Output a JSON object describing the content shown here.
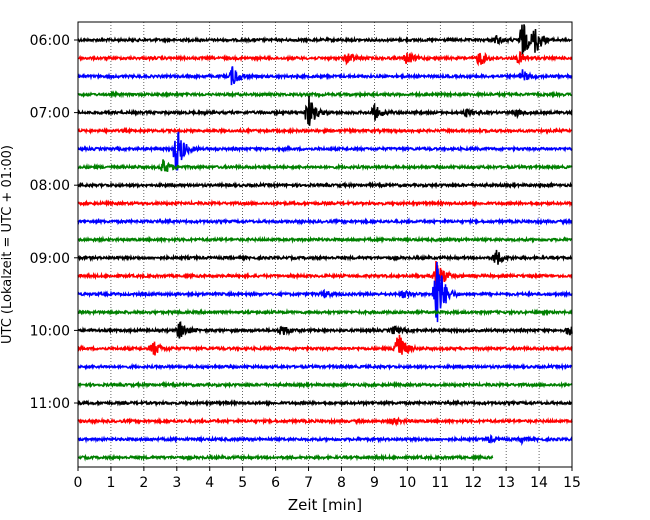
{
  "chart_data": {
    "type": "line",
    "subtype": "helicorder",
    "xlabel": "Zeit  [min]",
    "ylabel": "UTC (Lokalzeit = UTC + 01:00)",
    "xlim": [
      0,
      15
    ],
    "x_ticks": [
      0,
      1,
      2,
      3,
      4,
      5,
      6,
      7,
      8,
      9,
      10,
      11,
      12,
      13,
      14,
      15
    ],
    "x_tick_labels": [
      "0",
      "1",
      "2",
      "3",
      "4",
      "5",
      "6",
      "7",
      "8",
      "9",
      "10",
      "11",
      "12",
      "13",
      "14",
      "15"
    ],
    "y_tick_labels": [
      "06:00",
      "07:00",
      "08:00",
      "09:00",
      "10:00",
      "11:00"
    ],
    "grid": "vertical dotted lines at each minute",
    "colors": [
      "#000000",
      "#ff0000",
      "#0000ff",
      "#008000"
    ],
    "rows": [
      {
        "start": "06:00",
        "color": "#000000",
        "end_min": 15,
        "events": [
          {
            "t": 13.5,
            "amp": 3.2
          },
          {
            "t": 13.9,
            "amp": 2.2
          },
          {
            "t": 12.7,
            "amp": 0.7
          }
        ]
      },
      {
        "start": "06:15",
        "color": "#ff0000",
        "end_min": 15,
        "events": [
          {
            "t": 8.2,
            "amp": 1.0
          },
          {
            "t": 10.0,
            "amp": 1.1
          },
          {
            "t": 12.2,
            "amp": 1.3
          },
          {
            "t": 13.4,
            "amp": 1.0
          }
        ]
      },
      {
        "start": "06:30",
        "color": "#0000ff",
        "end_min": 15,
        "events": [
          {
            "t": 4.7,
            "amp": 1.8
          },
          {
            "t": 13.5,
            "amp": 1.0
          }
        ]
      },
      {
        "start": "06:45",
        "color": "#008000",
        "end_min": 15,
        "events": []
      },
      {
        "start": "07:00",
        "color": "#000000",
        "end_min": 15,
        "events": [
          {
            "t": 7.0,
            "amp": 3.0
          },
          {
            "t": 9.0,
            "amp": 1.3
          },
          {
            "t": 11.8,
            "amp": 0.6
          },
          {
            "t": 13.3,
            "amp": 0.6
          }
        ]
      },
      {
        "start": "07:15",
        "color": "#ff0000",
        "end_min": 15,
        "events": []
      },
      {
        "start": "07:30",
        "color": "#0000ff",
        "end_min": 15,
        "events": [
          {
            "t": 3.0,
            "amp": 4.2
          }
        ]
      },
      {
        "start": "07:45",
        "color": "#008000",
        "end_min": 15,
        "events": [
          {
            "t": 2.6,
            "amp": 1.3
          }
        ]
      },
      {
        "start": "08:00",
        "color": "#000000",
        "end_min": 15,
        "events": []
      },
      {
        "start": "08:15",
        "color": "#ff0000",
        "end_min": 15,
        "events": []
      },
      {
        "start": "08:30",
        "color": "#0000ff",
        "end_min": 15,
        "events": []
      },
      {
        "start": "08:45",
        "color": "#008000",
        "end_min": 15,
        "events": []
      },
      {
        "start": "09:00",
        "color": "#000000",
        "end_min": 15,
        "events": [
          {
            "t": 12.7,
            "amp": 1.4
          }
        ]
      },
      {
        "start": "09:15",
        "color": "#ff0000",
        "end_min": 15,
        "events": [
          {
            "t": 10.9,
            "amp": 3.5
          }
        ]
      },
      {
        "start": "09:30",
        "color": "#0000ff",
        "end_min": 15,
        "events": [
          {
            "t": 10.9,
            "amp": 7.5
          },
          {
            "t": 9.9,
            "amp": 0.6
          },
          {
            "t": 7.5,
            "amp": 0.6
          }
        ]
      },
      {
        "start": "09:45",
        "color": "#008000",
        "end_min": 15,
        "events": []
      },
      {
        "start": "10:00",
        "color": "#000000",
        "end_min": 15,
        "events": [
          {
            "t": 3.1,
            "amp": 1.6
          },
          {
            "t": 6.2,
            "amp": 1.0
          },
          {
            "t": 9.6,
            "amp": 0.7
          },
          {
            "t": 14.9,
            "amp": 0.8
          }
        ]
      },
      {
        "start": "10:15",
        "color": "#ff0000",
        "end_min": 15,
        "events": [
          {
            "t": 2.3,
            "amp": 1.3
          },
          {
            "t": 9.7,
            "amp": 3.5
          }
        ]
      },
      {
        "start": "10:30",
        "color": "#0000ff",
        "end_min": 15,
        "events": []
      },
      {
        "start": "10:45",
        "color": "#008000",
        "end_min": 15,
        "events": []
      },
      {
        "start": "11:00",
        "color": "#000000",
        "end_min": 15,
        "events": []
      },
      {
        "start": "11:15",
        "color": "#ff0000",
        "end_min": 15,
        "events": [
          {
            "t": 9.6,
            "amp": 0.5
          }
        ]
      },
      {
        "start": "11:30",
        "color": "#0000ff",
        "end_min": 15,
        "events": [
          {
            "t": 12.5,
            "amp": 0.5
          },
          {
            "t": 13.5,
            "amp": 0.5
          }
        ]
      },
      {
        "start": "11:45",
        "color": "#008000",
        "end_min": 12.6,
        "events": []
      }
    ]
  }
}
